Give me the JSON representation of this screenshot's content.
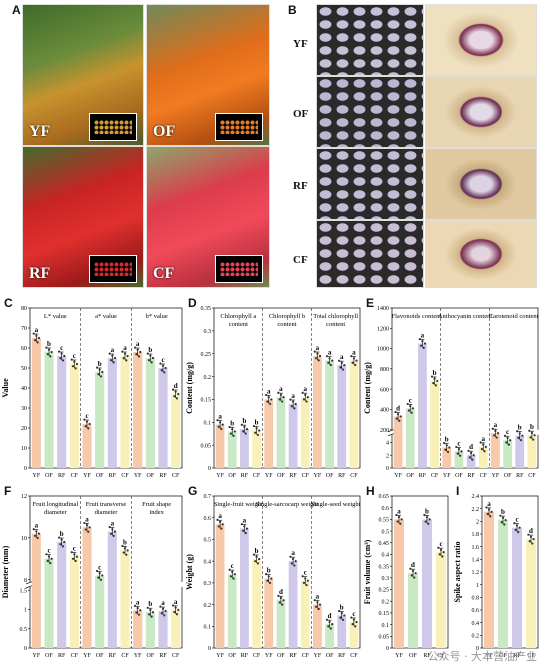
{
  "panels": {
    "A": {
      "letter": "A",
      "labels": [
        "YF",
        "OF",
        "RF",
        "CF"
      ]
    },
    "B": {
      "letter": "B",
      "labels": [
        "YF",
        "OF",
        "RF",
        "CF"
      ]
    },
    "C": {
      "letter": "C"
    },
    "D": {
      "letter": "D"
    },
    "E": {
      "letter": "E"
    },
    "F": {
      "letter": "F"
    },
    "G": {
      "letter": "G"
    },
    "H": {
      "letter": "H"
    },
    "I": {
      "letter": "I"
    }
  },
  "colors": {
    "YF": "#f7c9a8",
    "OF": "#c9e8c4",
    "RF": "#cfc8e8",
    "CF": "#f9f0b8"
  },
  "watermark": "公众号 · 大本营油产业",
  "chart_data": [
    {
      "id": "C",
      "type": "bar",
      "ylabel": "Value",
      "ylim": [
        0,
        80
      ],
      "yticks": [
        0,
        10,
        20,
        30,
        40,
        50,
        60,
        70,
        80
      ],
      "groups": [
        {
          "title": "L* value",
          "values": [
            65,
            58,
            56,
            52
          ],
          "letters": [
            "a",
            "b",
            "c",
            "c"
          ]
        },
        {
          "title": "a* value",
          "values": [
            22,
            48,
            55,
            56
          ],
          "letters": [
            "c",
            "b",
            "a",
            "a"
          ]
        },
        {
          "title": "b* value",
          "values": [
            58,
            55,
            50,
            37
          ],
          "letters": [
            "a",
            "b",
            "c",
            "d"
          ]
        }
      ],
      "categories": [
        "YF",
        "OF",
        "RF",
        "CF"
      ]
    },
    {
      "id": "D",
      "type": "bar",
      "ylabel": "Content (mg/g)",
      "ylim": [
        0,
        0.35
      ],
      "yticks": [
        0,
        0.05,
        0.1,
        0.15,
        0.2,
        0.25,
        0.3,
        0.35
      ],
      "groups": [
        {
          "title": "Chlorophyll a content",
          "values": [
            0.095,
            0.08,
            0.085,
            0.082
          ],
          "letters": [
            "a",
            "b",
            "b",
            "b"
          ]
        },
        {
          "title": "Chlorophyll b content",
          "values": [
            0.15,
            0.155,
            0.14,
            0.155
          ],
          "letters": [
            "a",
            "a",
            "a",
            "a"
          ]
        },
        {
          "title": "Total chlorophyll content",
          "values": [
            0.245,
            0.235,
            0.225,
            0.235
          ],
          "letters": [
            "a",
            "a",
            "a",
            "a"
          ]
        }
      ],
      "categories": [
        "YF",
        "OF",
        "RF",
        "CF"
      ]
    },
    {
      "id": "E",
      "type": "bar",
      "ylabel": "Content (mg/g)",
      "ylim": [
        0,
        1400
      ],
      "yticks": [
        0,
        2,
        4,
        200,
        400,
        600,
        800,
        1000,
        1200,
        1400
      ],
      "groups": [
        {
          "title": "Flavonoids content",
          "values": [
            330,
            410,
            1050,
            680
          ],
          "letters": [
            "d",
            "c",
            "a",
            "b"
          ]
        },
        {
          "title": "Anthocyanin content",
          "values": [
            3.2,
            2.6,
            2.0,
            3.3
          ],
          "letters": [
            "b",
            "c",
            "d",
            "a"
          ]
        },
        {
          "title": "Carotenoid content",
          "values": [
            165,
            95,
            140,
            145
          ],
          "letters": [
            "a",
            "c",
            "b",
            "b"
          ]
        }
      ],
      "categories": [
        "YF",
        "OF",
        "RF",
        "CF"
      ]
    },
    {
      "id": "F",
      "type": "bar",
      "ylabel": "Diameter (mm)",
      "ylim": [
        0,
        12
      ],
      "yticks": [
        0,
        0.5,
        1.0,
        1.5,
        8,
        10,
        12
      ],
      "groups": [
        {
          "title": "Fruit longitudinal diameter",
          "values": [
            10.2,
            9.0,
            9.8,
            9.1
          ],
          "letters": [
            "a",
            "c",
            "b",
            "c"
          ]
        },
        {
          "title": "Fruit transverse diameter",
          "values": [
            10.5,
            8.2,
            10.3,
            9.4
          ],
          "letters": [
            "a",
            "c",
            "a",
            "b"
          ]
        },
        {
          "title": "Fruit shape index",
          "values": [
            0.98,
            0.93,
            0.96,
            0.99
          ],
          "letters": [
            "a",
            "b",
            "a",
            "a"
          ]
        }
      ],
      "categories": [
        "YF",
        "OF",
        "RF",
        "CF"
      ]
    },
    {
      "id": "G",
      "type": "bar",
      "ylabel": "Weight (g)",
      "ylim": [
        0,
        0.7
      ],
      "yticks": [
        0,
        0.1,
        0.2,
        0.3,
        0.4,
        0.5,
        0.6,
        0.7
      ],
      "groups": [
        {
          "title": "Single-fruit weight",
          "values": [
            0.57,
            0.34,
            0.55,
            0.41
          ],
          "letters": [
            "a",
            "c",
            "a",
            "b"
          ]
        },
        {
          "title": "Single-sarcocarp weight",
          "values": [
            0.32,
            0.22,
            0.4,
            0.31
          ],
          "letters": [
            "b",
            "d",
            "a",
            "c"
          ]
        },
        {
          "title": "Single-seed weight",
          "values": [
            0.2,
            0.11,
            0.15,
            0.12
          ],
          "letters": [
            "a",
            "d",
            "b",
            "c"
          ]
        }
      ],
      "categories": [
        "YF",
        "OF",
        "RF",
        "CF"
      ]
    },
    {
      "id": "H",
      "type": "bar",
      "ylabel": "Fruit volume (cm³)",
      "ylim": [
        0,
        0.65
      ],
      "yticks": [
        0,
        0.05,
        0.1,
        0.15,
        0.2,
        0.25,
        0.3,
        0.35,
        0.4,
        0.45,
        0.5,
        0.55,
        0.6,
        0.65
      ],
      "values": [
        0.55,
        0.32,
        0.55,
        0.41
      ],
      "letters": [
        "a",
        "d",
        "b",
        "c"
      ],
      "categories": [
        "YF",
        "OF",
        "RF",
        "CF"
      ]
    },
    {
      "id": "I",
      "type": "bar",
      "ylabel": "Spike aspect ratio",
      "ylim": [
        0,
        2.4
      ],
      "yticks": [
        0,
        0.2,
        0.4,
        0.6,
        0.8,
        1.0,
        1.2,
        1.4,
        1.6,
        1.8,
        2.0,
        2.2,
        2.4
      ],
      "values": [
        2.15,
        2.02,
        1.9,
        1.72
      ],
      "letters": [
        "a",
        "b",
        "c",
        "d"
      ],
      "categories": [
        "YF",
        "OF",
        "RF",
        "CF"
      ]
    }
  ]
}
